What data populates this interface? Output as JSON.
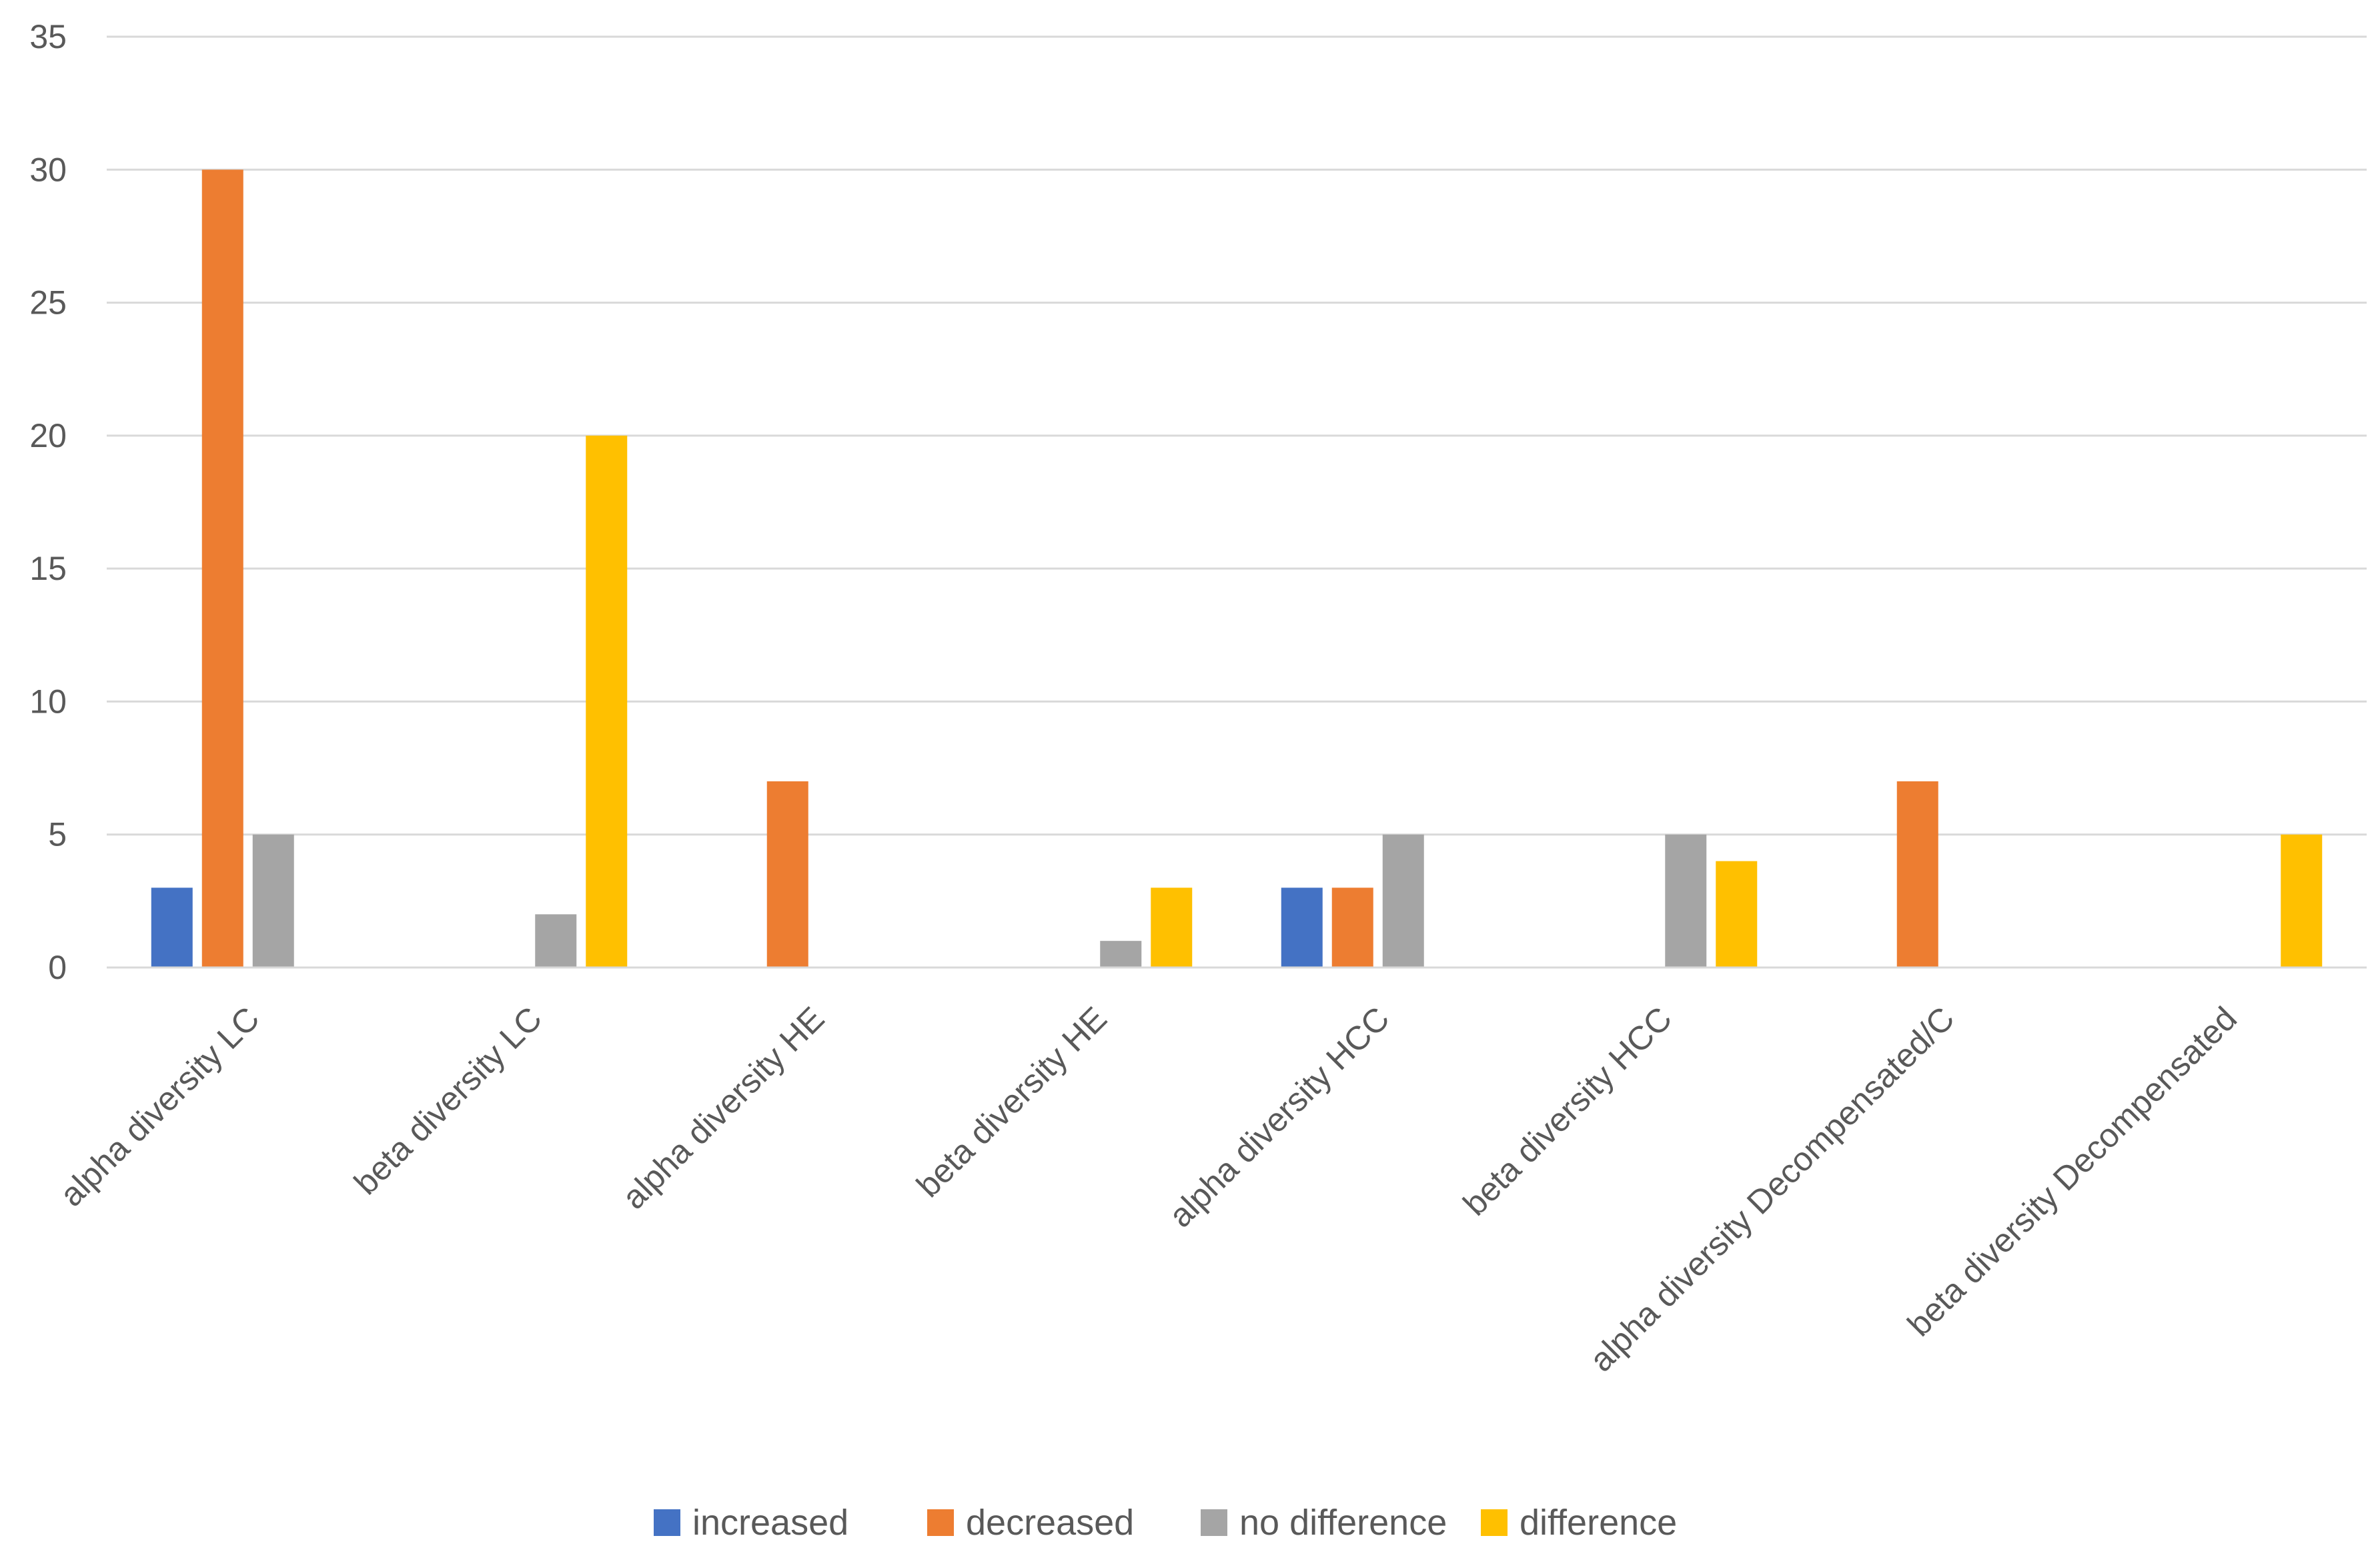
{
  "chart_data": {
    "type": "bar",
    "title": "",
    "xlabel": "",
    "ylabel": "",
    "ylim": [
      0,
      35
    ],
    "yticks": [
      0,
      5,
      10,
      15,
      20,
      25,
      30,
      35
    ],
    "grid": true,
    "legend_position": "bottom",
    "categories": [
      "alpha diversity LC",
      "beta diversity LC",
      "alpha diversity HE",
      "beta diversity HE",
      "alpha diversity HCC",
      "beta diversity HCC",
      "alpha diversity Decompensated/C",
      "beta diversity Decompensated"
    ],
    "series": [
      {
        "name": "increased",
        "color": "#4472C4",
        "values": [
          3,
          0,
          0,
          0,
          3,
          0,
          0,
          0
        ]
      },
      {
        "name": "decreased",
        "color": "#ED7D31",
        "values": [
          30,
          0,
          7,
          0,
          3,
          0,
          7,
          0
        ]
      },
      {
        "name": "no difference",
        "color": "#A5A5A5",
        "values": [
          5,
          2,
          0,
          1,
          5,
          5,
          0,
          0
        ]
      },
      {
        "name": "difference",
        "color": "#FFC000",
        "values": [
          0,
          20,
          0,
          3,
          0,
          4,
          0,
          5
        ]
      }
    ]
  }
}
